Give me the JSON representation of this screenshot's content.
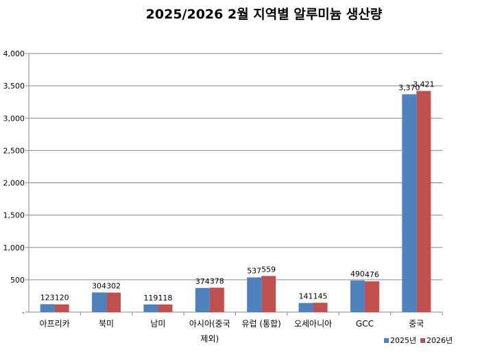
{
  "chart_data": {
    "type": "bar",
    "title": "2025/2026 2월 지역별 알루미늄 생산량",
    "xlabel": "",
    "ylabel": "",
    "categories": [
      [
        "아프리카"
      ],
      [
        "북미"
      ],
      [
        "남미"
      ],
      [
        "아시아(중국",
        "제외)"
      ],
      [
        "유럽 (통합)"
      ],
      [
        "오세아니아"
      ],
      [
        "GCC"
      ],
      [
        "중국"
      ]
    ],
    "series": [
      {
        "name": "2025년",
        "color": "#4F81BD",
        "values": [
          123,
          304,
          119,
          374,
          537,
          141,
          490,
          3370
        ]
      },
      {
        "name": "2026년",
        "color": "#C0504D",
        "values": [
          120,
          302,
          118,
          378,
          559,
          145,
          476,
          3421
        ]
      }
    ],
    "ylim": [
      0,
      4000
    ],
    "yticks": [
      "-",
      "500",
      "1,000",
      "1,500",
      "2,000",
      "2,500",
      "3,000",
      "3,500",
      "4,000"
    ],
    "grid": true,
    "legend_position": "bottom-right"
  }
}
